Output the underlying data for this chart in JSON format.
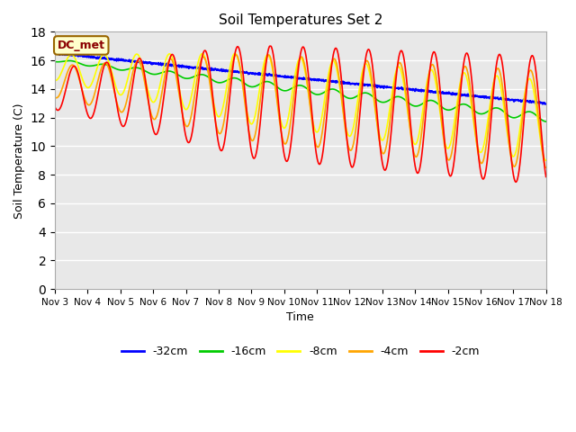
{
  "title": "Soil Temperatures Set 2",
  "xlabel": "Time",
  "ylabel": "Soil Temperature (C)",
  "ylim": [
    0,
    18
  ],
  "yticks": [
    0,
    2,
    4,
    6,
    8,
    10,
    12,
    14,
    16,
    18
  ],
  "xtick_labels": [
    "Nov 3",
    "Nov 4",
    "Nov 5",
    "Nov 6",
    "Nov 7",
    "Nov 8",
    "Nov 9",
    "Nov 10",
    "Nov 11",
    "Nov 12",
    "Nov 13",
    "Nov 14",
    "Nov 15",
    "Nov 16",
    "Nov 17",
    "Nov 18"
  ],
  "legend_labels": [
    "-32cm",
    "-16cm",
    "-8cm",
    "-4cm",
    "-2cm"
  ],
  "line_colors": [
    "blue",
    "#00cc00",
    "yellow",
    "orange",
    "red"
  ],
  "annotation_text": "DC_met",
  "annotation_bg": "#ffffcc",
  "annotation_border": "#996600",
  "plot_bg": "#e8e8e8",
  "n_days": 15
}
